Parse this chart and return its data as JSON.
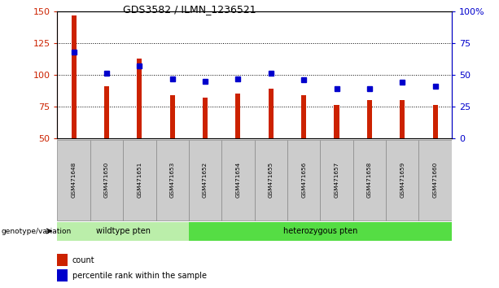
{
  "title": "GDS3582 / ILMN_1236521",
  "samples": [
    "GSM471648",
    "GSM471650",
    "GSM471651",
    "GSM471653",
    "GSM471652",
    "GSM471654",
    "GSM471655",
    "GSM471656",
    "GSM471657",
    "GSM471658",
    "GSM471659",
    "GSM471660"
  ],
  "counts": [
    147,
    91,
    113,
    84,
    82,
    85,
    89,
    84,
    76,
    80,
    80,
    76
  ],
  "percentile_ranks": [
    68,
    51,
    57,
    47,
    45,
    47,
    51,
    46,
    39,
    39,
    44,
    41
  ],
  "ylim_left": [
    50,
    150
  ],
  "ylim_right": [
    0,
    100
  ],
  "yticks_left": [
    50,
    75,
    100,
    125,
    150
  ],
  "yticks_right": [
    0,
    25,
    50,
    75,
    100
  ],
  "bar_color": "#cc2200",
  "dot_color": "#0000cc",
  "bg_color": "#ffffff",
  "group_labels": [
    "wildtype pten",
    "heterozygous pten"
  ],
  "wt_count": 4,
  "het_count": 8,
  "wildtype_color": "#bbeeaa",
  "hetero_color": "#55dd44",
  "label_count": "count",
  "label_percentile": "percentile rank within the sample",
  "genotype_label": "genotype/variation",
  "bar_bottom": 50,
  "bar_width": 0.15,
  "dot_size": 5,
  "sample_box_color": "#cccccc",
  "sample_box_edge": "#888888"
}
